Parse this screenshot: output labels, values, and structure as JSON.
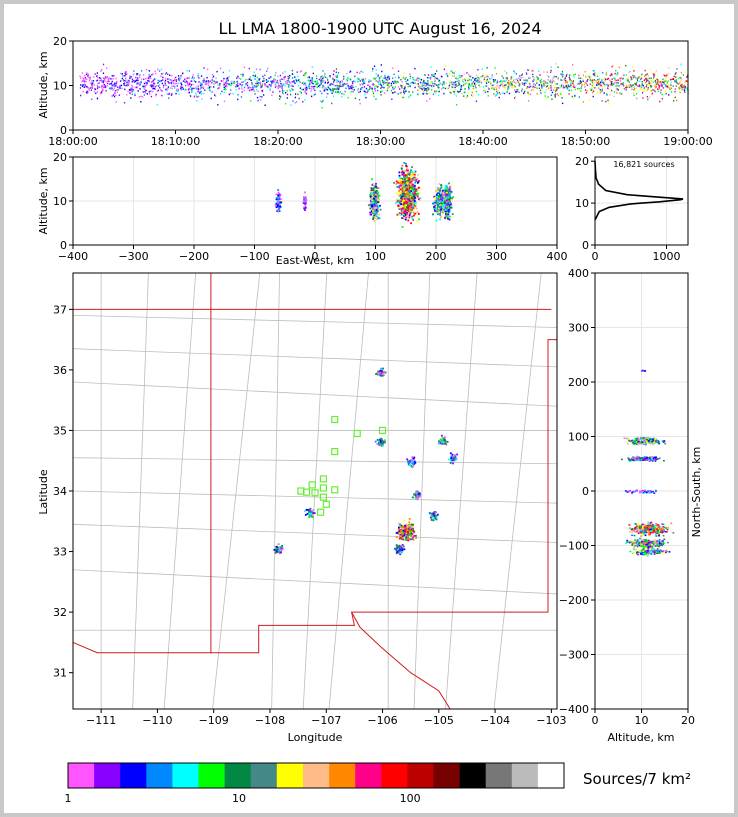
{
  "chart_data": {
    "type": "heatmap",
    "title": "LL LMA 1800-1900 UTC August 16, 2024",
    "panels": {
      "time_height": {
        "ylabel": "Altitude, km",
        "ylim": [
          0,
          20
        ],
        "yticks": [
          "0",
          "10",
          "20"
        ],
        "xticks": [
          "18:00:00",
          "18:10:00",
          "18:20:00",
          "18:30:00",
          "18:40:00",
          "18:50:00",
          "19:00:00"
        ]
      },
      "ew_height": {
        "xlabel": "East-West, km",
        "ylabel": "Altitude, km",
        "xlim": [
          -400,
          400
        ],
        "ylim": [
          0,
          20
        ],
        "xticks": [
          "−400",
          "−300",
          "−200",
          "−100",
          "0",
          "100",
          "200",
          "300",
          "400"
        ],
        "yticks": [
          "0",
          "10",
          "20"
        ]
      },
      "histogram": {
        "annotation": "16,821 sources",
        "xticks": [
          "0",
          "1000"
        ],
        "yticks": [
          "0",
          "10",
          "20"
        ],
        "profile": [
          [
            0,
            6
          ],
          [
            60,
            8
          ],
          [
            200,
            9
          ],
          [
            500,
            9.8
          ],
          [
            900,
            10.3
          ],
          [
            1200,
            10.8
          ],
          [
            1230,
            11
          ],
          [
            900,
            11.4
          ],
          [
            450,
            12
          ],
          [
            150,
            13
          ],
          [
            50,
            14.5
          ],
          [
            15,
            16
          ],
          [
            5,
            18
          ],
          [
            0,
            20
          ]
        ]
      },
      "plan": {
        "xlabel": "Longitude",
        "ylabel": "Latitude",
        "xlim": [
          -111.5,
          -102.9
        ],
        "ylim": [
          30.4,
          37.6
        ],
        "xticks": [
          "−111",
          "−110",
          "−109",
          "−108",
          "−107",
          "−106",
          "−105",
          "−104",
          "−103"
        ],
        "yticks": [
          "31",
          "32",
          "33",
          "34",
          "35",
          "36",
          "37"
        ],
        "clusters": [
          {
            "lon": -107.85,
            "lat": 33.05
          },
          {
            "lon": -107.3,
            "lat": 33.65
          },
          {
            "lon": -106.05,
            "lat": 35.97
          },
          {
            "lon": -106.05,
            "lat": 34.82
          },
          {
            "lon": -105.6,
            "lat": 33.35
          },
          {
            "lon": -105.7,
            "lat": 33.05
          },
          {
            "lon": -105.4,
            "lat": 33.95
          },
          {
            "lon": -105.1,
            "lat": 33.6
          },
          {
            "lon": -104.95,
            "lat": 34.85
          },
          {
            "lon": -104.75,
            "lat": 34.55
          },
          {
            "lon": -105.5,
            "lat": 34.5
          }
        ],
        "stations": [
          {
            "lon": -106.85,
            "lat": 35.18
          },
          {
            "lon": -106.45,
            "lat": 34.95
          },
          {
            "lon": -106.0,
            "lat": 35.0
          },
          {
            "lon": -106.85,
            "lat": 34.65
          },
          {
            "lon": -107.05,
            "lat": 34.2
          },
          {
            "lon": -107.25,
            "lat": 34.1
          },
          {
            "lon": -107.35,
            "lat": 33.98
          },
          {
            "lon": -107.45,
            "lat": 34.0
          },
          {
            "lon": -107.2,
            "lat": 33.97
          },
          {
            "lon": -107.05,
            "lat": 34.05
          },
          {
            "lon": -106.85,
            "lat": 34.02
          },
          {
            "lon": -107.05,
            "lat": 33.9
          },
          {
            "lon": -107.0,
            "lat": 33.78
          },
          {
            "lon": -107.1,
            "lat": 33.65
          }
        ]
      },
      "ns_height": {
        "xlabel": "Altitude, km",
        "ylabel": "North-South, km",
        "xlim": [
          0,
          20
        ],
        "ylim": [
          -400,
          400
        ],
        "xticks": [
          "0",
          "10",
          "20"
        ],
        "yticks": [
          "400",
          "300",
          "200",
          "100",
          "0",
          "−100",
          "−200",
          "−300",
          "−400"
        ]
      }
    },
    "colorbar": {
      "label": "Sources/7 km²",
      "ticks": [
        "1",
        "10",
        "100"
      ],
      "colors": [
        "#ff55ff",
        "#8800ff",
        "#0000ff",
        "#0088ff",
        "#00ffff",
        "#00ff00",
        "#008844",
        "#448888",
        "#ffff00",
        "#ffbb88",
        "#ff8800",
        "#ff0088",
        "#ff0000",
        "#bb0000",
        "#770000",
        "#000000",
        "#777777",
        "#bbbbbb",
        "#ffffff"
      ]
    }
  }
}
